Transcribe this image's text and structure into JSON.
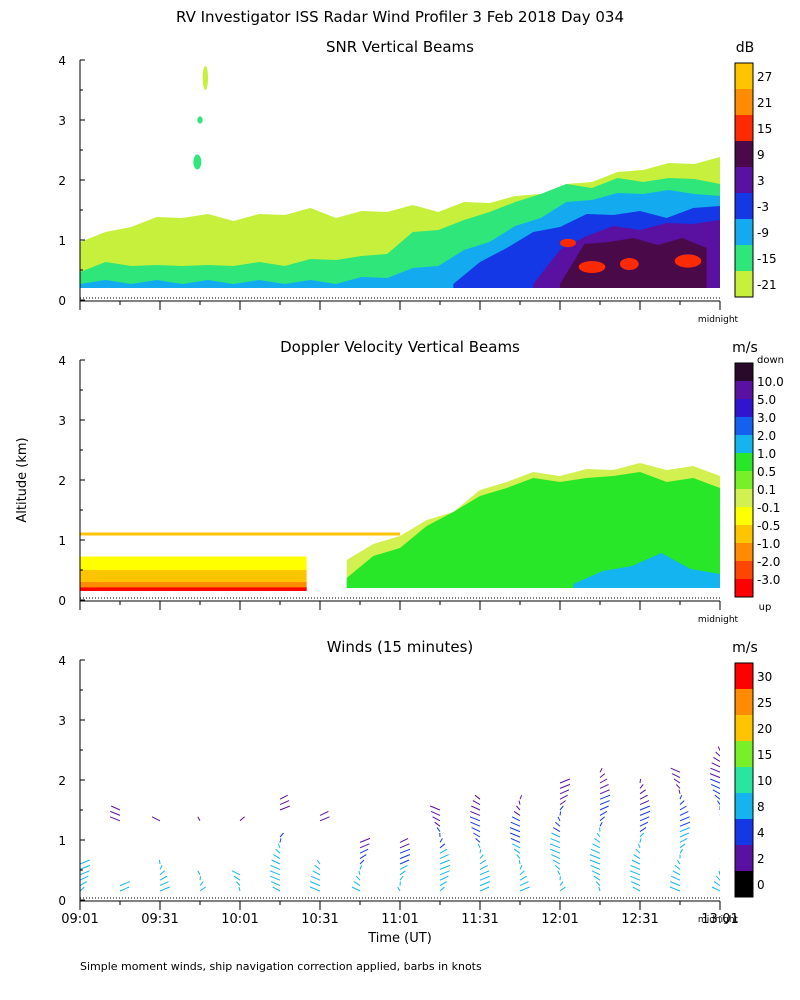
{
  "header": {
    "title": "RV Investigator ISS Radar Wind Profiler    3 Feb 2018 Day 034"
  },
  "ylabel": "Altitude (km)",
  "xlabel": "Time (UT)",
  "footnote": "Simple moment winds, ship navigation correction applied, barbs in knots",
  "midnight_label": "midnight",
  "time_ticks": [
    "09:01",
    "09:31",
    "10:01",
    "10:31",
    "11:01",
    "11:31",
    "12:01",
    "12:31",
    "13:01"
  ],
  "altitude_ticks": [
    "0",
    "1",
    "2",
    "3",
    "4"
  ],
  "chart_data": [
    {
      "type": "heatmap",
      "title": "SNR Vertical Beams",
      "colorbar_unit": "dB",
      "colorbar_ticks": [
        "27",
        "21",
        "15",
        "9",
        "3",
        "-3",
        "-9",
        "-15",
        "-21"
      ],
      "colorbar_colors": [
        "#ffc400",
        "#ff8c00",
        "#ff2a00",
        "#4a0a4a",
        "#5a10a0",
        "#1438e6",
        "#14aaf0",
        "#2ee67a",
        "#c6f03c"
      ],
      "xlim": [
        0,
        240
      ],
      "ylim": [
        0,
        4
      ],
      "layers": [
        {
          "color": "#c6f03c",
          "start": 0,
          "end": 240,
          "tops": [
            1.0,
            1.1,
            1.25,
            1.35,
            1.4,
            1.4,
            1.35,
            1.4,
            1.45,
            1.5,
            1.4,
            1.45,
            1.5,
            1.55,
            1.5,
            1.6,
            1.65,
            1.7,
            1.8,
            1.9,
            2.0,
            2.1,
            2.2,
            2.25,
            2.3,
            2.35
          ]
        },
        {
          "color": "#2ee67a",
          "start": 0,
          "end": 240,
          "tops": [
            0.5,
            0.6,
            0.6,
            0.55,
            0.6,
            0.55,
            0.6,
            0.6,
            0.6,
            0.65,
            0.7,
            0.7,
            0.8,
            1.1,
            1.2,
            1.3,
            1.5,
            1.6,
            1.8,
            1.9,
            1.9,
            2.0,
            2.0,
            2.0,
            2.05,
            1.9
          ]
        },
        {
          "color": "#14aaf0",
          "start": 0,
          "end": 240,
          "tops": [
            0.3,
            0.3,
            0.3,
            0.3,
            0.3,
            0.3,
            0.3,
            0.3,
            0.3,
            0.3,
            0.3,
            0.35,
            0.4,
            0.5,
            0.6,
            0.8,
            1.0,
            1.2,
            1.4,
            1.6,
            1.7,
            1.75,
            1.8,
            1.8,
            1.8,
            1.7
          ]
        },
        {
          "color": "#1438e6",
          "start": 140,
          "end": 240,
          "tops": [
            0.3,
            0.6,
            0.9,
            1.1,
            1.25,
            1.4,
            1.45,
            1.45,
            1.4,
            1.5,
            1.6
          ]
        },
        {
          "color": "#5a10a0",
          "start": 170,
          "end": 240,
          "tops": [
            0.3,
            0.8,
            1.1,
            1.2,
            1.2,
            1.25,
            1.3,
            1.3
          ]
        },
        {
          "color": "#4a0a4a",
          "start": 180,
          "end": 235,
          "tops": [
            0.3,
            0.9,
            1.0,
            1.0,
            0.95,
            1.0,
            0.9
          ]
        }
      ],
      "blobs": [
        {
          "color": "#ff2a00",
          "t": 183,
          "z": 0.95,
          "w": 6,
          "h": 0.14
        },
        {
          "color": "#ff2a00",
          "t": 192,
          "z": 0.55,
          "w": 10,
          "h": 0.2
        },
        {
          "color": "#ff2a00",
          "t": 206,
          "z": 0.6,
          "w": 7,
          "h": 0.2
        },
        {
          "color": "#ff2a00",
          "t": 228,
          "z": 0.65,
          "w": 10,
          "h": 0.22
        },
        {
          "color": "#2ee67a",
          "t": 44,
          "z": 2.3,
          "w": 3,
          "h": 0.25
        },
        {
          "color": "#2ee67a",
          "t": 45,
          "z": 3.0,
          "w": 2,
          "h": 0.12
        },
        {
          "color": "#c6f03c",
          "t": 47,
          "z": 3.7,
          "w": 2,
          "h": 0.4
        }
      ]
    },
    {
      "type": "heatmap",
      "title": "Doppler Velocity Vertical Beams",
      "colorbar_unit": "m/s",
      "colorbar_top_label": "down",
      "colorbar_bottom_label": "up",
      "colorbar_ticks": [
        "10.0",
        "5.0",
        "3.0",
        "2.0",
        "1.0",
        "0.5",
        "0.1",
        "-0.1",
        "-0.5",
        "-1.0",
        "-2.0",
        "-3.0"
      ],
      "colorbar_colors": [
        "#2a0a2a",
        "#5a10a0",
        "#3014d0",
        "#1460f0",
        "#14b4f0",
        "#28e628",
        "#78f028",
        "#d2f050",
        "#ffff00",
        "#ffc400",
        "#ff8c00",
        "#ff4600",
        "#ff0000"
      ],
      "xlim": [
        0,
        240
      ],
      "ylim": [
        0,
        4
      ],
      "layers": [
        {
          "color": "#d2f050",
          "start": 100,
          "end": 240,
          "tops": [
            0.7,
            0.9,
            1.1,
            1.3,
            1.5,
            1.8,
            2.0,
            2.1,
            2.1,
            2.15,
            2.2,
            2.25,
            2.2,
            2.2,
            2.1
          ]
        },
        {
          "color": "#28e628",
          "start": 100,
          "end": 240,
          "tops": [
            0.4,
            0.7,
            0.9,
            1.2,
            1.5,
            1.7,
            1.9,
            2.0,
            2.0,
            2.0,
            2.1,
            2.1,
            2.0,
            2.0,
            1.9
          ]
        },
        {
          "color": "#14b4f0",
          "start": 185,
          "end": 240,
          "tops": [
            0.3,
            0.45,
            0.6,
            0.75,
            0.55,
            0.4
          ]
        }
      ],
      "bands": [
        {
          "color": "#ffc400",
          "t0": 0,
          "t1": 120,
          "z": 1.1,
          "h": 0.05
        },
        {
          "color": "#ffff00",
          "t0": 0,
          "t1": 85,
          "z": 0.6,
          "h": 0.25
        },
        {
          "color": "#ffc400",
          "t0": 0,
          "t1": 85,
          "z": 0.4,
          "h": 0.2
        },
        {
          "color": "#ff8c00",
          "t0": 0,
          "t1": 85,
          "z": 0.25,
          "h": 0.1
        },
        {
          "color": "#ff0000",
          "t0": 0,
          "t1": 85,
          "z": 0.18,
          "h": 0.06
        }
      ]
    },
    {
      "type": "scatter",
      "title": "Winds (15 minutes)",
      "colorbar_unit": "m/s",
      "colorbar_ticks": [
        "30",
        "25",
        "20",
        "15",
        "10",
        "8",
        "4",
        "2",
        "0"
      ],
      "colorbar_colors": [
        "#ff0000",
        "#ff8c00",
        "#ffc400",
        "#78f028",
        "#28e6a0",
        "#14b4f0",
        "#1438e6",
        "#5a10a0",
        "#000000"
      ],
      "xlim": [
        0,
        240
      ],
      "ylim": [
        0,
        4
      ],
      "profiles": [
        {
          "t": 0,
          "top": 1.65,
          "gaps": [
            [
              0.6,
              1.5
            ]
          ]
        },
        {
          "t": 15,
          "top": 1.5,
          "gaps": [
            [
              0.3,
              1.3
            ]
          ]
        },
        {
          "t": 30,
          "top": 1.4,
          "gaps": [
            [
              0.6,
              1.3
            ]
          ]
        },
        {
          "t": 45,
          "top": 1.4,
          "gaps": [
            [
              0.5,
              1.3
            ]
          ]
        },
        {
          "t": 60,
          "top": 1.4,
          "gaps": [
            [
              0.5,
              1.3
            ]
          ]
        },
        {
          "t": 75,
          "top": 1.7,
          "gaps": [
            [
              1.1,
              1.5
            ]
          ]
        },
        {
          "t": 90,
          "top": 1.45,
          "gaps": [
            [
              0.6,
              1.3
            ]
          ]
        },
        {
          "t": 105,
          "top": 1.0,
          "gaps": []
        },
        {
          "t": 120,
          "top": 1.0,
          "gaps": []
        },
        {
          "t": 135,
          "top": 1.5,
          "gaps": []
        },
        {
          "t": 150,
          "top": 1.7,
          "gaps": []
        },
        {
          "t": 165,
          "top": 1.7,
          "gaps": []
        },
        {
          "t": 180,
          "top": 1.95,
          "gaps": []
        },
        {
          "t": 195,
          "top": 2.2,
          "gaps": []
        },
        {
          "t": 210,
          "top": 1.95,
          "gaps": []
        },
        {
          "t": 225,
          "top": 2.15,
          "gaps": []
        },
        {
          "t": 240,
          "top": 2.5,
          "gaps": []
        }
      ]
    }
  ]
}
